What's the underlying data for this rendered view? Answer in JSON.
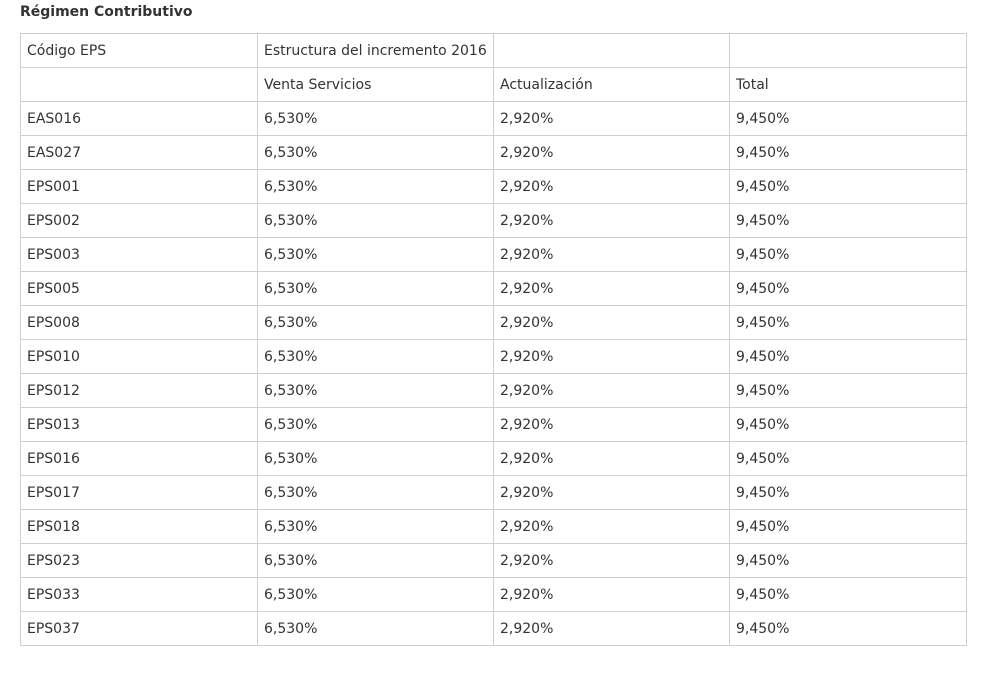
{
  "page": {
    "title": "Régimen Contributivo"
  },
  "table": {
    "header_row_1": [
      "Código EPS",
      "Estructura del incremento 2016",
      "",
      ""
    ],
    "header_row_2": [
      "",
      "Venta Servicios",
      "Actualización",
      "Total"
    ],
    "rows": [
      [
        "EAS016",
        "6,530%",
        "2,920%",
        "9,450%"
      ],
      [
        "EAS027",
        "6,530%",
        "2,920%",
        "9,450%"
      ],
      [
        "EPS001",
        "6,530%",
        "2,920%",
        "9,450%"
      ],
      [
        "EPS002",
        "6,530%",
        "2,920%",
        "9,450%"
      ],
      [
        "EPS003",
        "6,530%",
        "2,920%",
        "9,450%"
      ],
      [
        "EPS005",
        "6,530%",
        "2,920%",
        "9,450%"
      ],
      [
        "EPS008",
        "6,530%",
        "2,920%",
        "9,450%"
      ],
      [
        "EPS010",
        "6,530%",
        "2,920%",
        "9,450%"
      ],
      [
        "EPS012",
        "6,530%",
        "2,920%",
        "9,450%"
      ],
      [
        "EPS013",
        "6,530%",
        "2,920%",
        "9,450%"
      ],
      [
        "EPS016",
        "6,530%",
        "2,920%",
        "9,450%"
      ],
      [
        "EPS017",
        "6,530%",
        "2,920%",
        "9,450%"
      ],
      [
        "EPS018",
        "6,530%",
        "2,920%",
        "9,450%"
      ],
      [
        "EPS023",
        "6,530%",
        "2,920%",
        "9,450%"
      ],
      [
        "EPS033",
        "6,530%",
        "2,920%",
        "9,450%"
      ],
      [
        "EPS037",
        "6,530%",
        "2,920%",
        "9,450%"
      ]
    ]
  }
}
